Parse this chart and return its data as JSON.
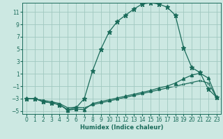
{
  "xlabel": "Humidex (Indice chaleur)",
  "xlim": [
    -0.5,
    23.5
  ],
  "ylim": [
    -5.5,
    12.5
  ],
  "yticks": [
    -5,
    -3,
    -1,
    1,
    3,
    5,
    7,
    9,
    11
  ],
  "xticks": [
    0,
    1,
    2,
    3,
    4,
    5,
    6,
    7,
    8,
    9,
    10,
    11,
    12,
    13,
    14,
    15,
    16,
    17,
    18,
    19,
    20,
    21,
    22,
    23
  ],
  "bg_color": "#cce8e2",
  "line_color": "#1a6b5a",
  "grid_color": "#a0c8c0",
  "line1_x": [
    0,
    1,
    2,
    3,
    4,
    5,
    6,
    7,
    8,
    9,
    10,
    11,
    12,
    13,
    14,
    15,
    16,
    17,
    18,
    19,
    20,
    21,
    22,
    23
  ],
  "line1_y": [
    -3,
    -3,
    -3.5,
    -3.7,
    -4,
    -4.8,
    -4.5,
    -3.0,
    1.5,
    5.0,
    7.8,
    9.5,
    10.5,
    11.5,
    12.3,
    12.5,
    12.3,
    11.8,
    10.5,
    5.2,
    2.0,
    1.2,
    -1.5,
    -2.8
  ],
  "line2_x": [
    0,
    1,
    2,
    3,
    4,
    5,
    6,
    7,
    8,
    9,
    10,
    11,
    12,
    13,
    14,
    15,
    16,
    17,
    18,
    19,
    20,
    21,
    22,
    23
  ],
  "line2_y": [
    -3,
    -3,
    -3.5,
    -3.7,
    -4.0,
    -4.9,
    -4.7,
    -4.8,
    -3.8,
    -3.5,
    -3.2,
    -2.9,
    -2.6,
    -2.3,
    -2.0,
    -1.7,
    -1.3,
    -1.0,
    -0.5,
    0.2,
    0.8,
    1.1,
    0.3,
    -2.8
  ],
  "line3_x": [
    0,
    1,
    2,
    3,
    4,
    5,
    6,
    7,
    8,
    9,
    10,
    11,
    12,
    13,
    14,
    15,
    16,
    17,
    18,
    19,
    20,
    21,
    22,
    23
  ],
  "line3_y": [
    -3,
    -3,
    -3.3,
    -3.5,
    -3.8,
    -4.5,
    -4.4,
    -4.5,
    -4.0,
    -3.7,
    -3.4,
    -3.1,
    -2.8,
    -2.5,
    -2.2,
    -1.9,
    -1.6,
    -1.3,
    -1.0,
    -0.7,
    -0.4,
    -0.1,
    -0.5,
    -2.8
  ],
  "marker_size": 3.0,
  "linewidth": 0.9
}
